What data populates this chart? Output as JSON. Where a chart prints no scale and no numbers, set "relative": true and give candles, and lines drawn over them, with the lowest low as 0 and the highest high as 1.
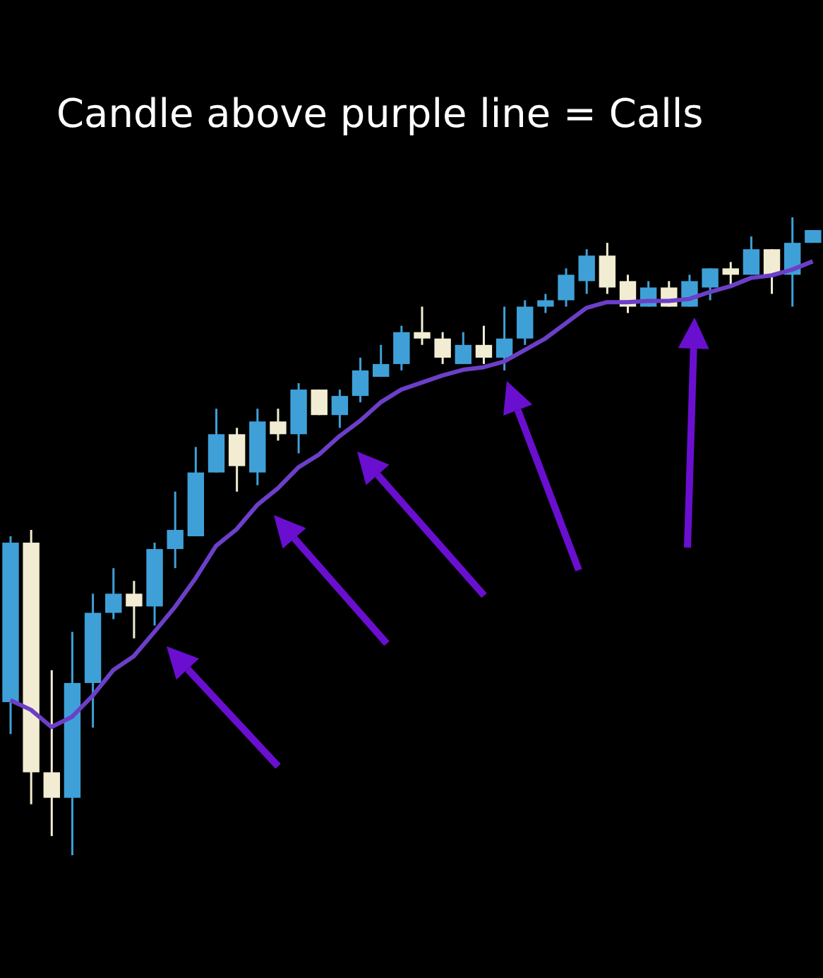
{
  "chart_data": {
    "type": "candlestick",
    "title": "Candle above purple line = Calls",
    "relative": true,
    "categories": [
      null,
      null,
      null,
      null,
      null,
      null,
      null,
      null,
      null,
      null,
      null,
      null,
      null,
      null,
      null,
      null,
      null,
      null,
      null,
      null,
      null,
      null,
      null,
      null,
      null,
      null,
      null,
      null,
      null,
      null,
      null,
      null,
      null,
      null,
      null,
      null,
      null,
      null,
      null,
      null
    ],
    "ohlc": [
      [
        0.24,
        0.5,
        0.19,
        0.49
      ],
      [
        0.49,
        0.51,
        0.08,
        0.13
      ],
      [
        0.13,
        0.29,
        0.03,
        0.09
      ],
      [
        0.09,
        0.35,
        0,
        0.27
      ],
      [
        0.27,
        0.41,
        0.2,
        0.38
      ],
      [
        0.38,
        0.45,
        0.37,
        0.41
      ],
      [
        0.41,
        0.43,
        0.34,
        0.39
      ],
      [
        0.39,
        0.49,
        0.36,
        0.48
      ],
      [
        0.48,
        0.57,
        0.45,
        0.51
      ],
      [
        0.5,
        0.64,
        0.5,
        0.6
      ],
      [
        0.6,
        0.7,
        0.6,
        0.66
      ],
      [
        0.66,
        0.67,
        0.57,
        0.61
      ],
      [
        0.6,
        0.7,
        0.58,
        0.68
      ],
      [
        0.68,
        0.7,
        0.65,
        0.66
      ],
      [
        0.66,
        0.74,
        0.63,
        0.73
      ],
      [
        0.73,
        0.73,
        0.69,
        0.69
      ],
      [
        0.69,
        0.73,
        0.67,
        0.72
      ],
      [
        0.72,
        0.78,
        0.71,
        0.76
      ],
      [
        0.75,
        0.8,
        0.75,
        0.77
      ],
      [
        0.77,
        0.83,
        0.76,
        0.82
      ],
      [
        0.82,
        0.86,
        0.8,
        0.81
      ],
      [
        0.81,
        0.82,
        0.77,
        0.78
      ],
      [
        0.77,
        0.82,
        0.77,
        0.8
      ],
      [
        0.8,
        0.83,
        0.77,
        0.78
      ],
      [
        0.78,
        0.86,
        0.76,
        0.81
      ],
      [
        0.81,
        0.87,
        0.8,
        0.86
      ],
      [
        0.86,
        0.88,
        0.85,
        0.87
      ],
      [
        0.87,
        0.92,
        0.86,
        0.91
      ],
      [
        0.9,
        0.95,
        0.88,
        0.94
      ],
      [
        0.94,
        0.96,
        0.88,
        0.89
      ],
      [
        0.9,
        0.91,
        0.85,
        0.86
      ],
      [
        0.86,
        0.9,
        0.86,
        0.89
      ],
      [
        0.89,
        0.9,
        0.86,
        0.86
      ],
      [
        0.86,
        0.91,
        0.86,
        0.9
      ],
      [
        0.89,
        0.92,
        0.87,
        0.92
      ],
      [
        0.92,
        0.93,
        0.89,
        0.91
      ],
      [
        0.91,
        0.97,
        0.91,
        0.95
      ],
      [
        0.95,
        0.95,
        0.88,
        0.91
      ],
      [
        0.91,
        1,
        0.86,
        0.96
      ],
      [
        0.96,
        0.98,
        0.96,
        0.98
      ]
    ],
    "colors": [
      "#3fa0d8",
      "#f2edd2",
      "#f2edd2",
      "#3fa0d8",
      "#3fa0d8",
      "#3fa0d8",
      "#f2edd2",
      "#3fa0d8",
      "#3fa0d8",
      "#3fa0d8",
      "#3fa0d8",
      "#f2edd2",
      "#3fa0d8",
      "#f2edd2",
      "#3fa0d8",
      "#f2edd2",
      "#3fa0d8",
      "#3fa0d8",
      "#3fa0d8",
      "#3fa0d8",
      "#f2edd2",
      "#f2edd2",
      "#3fa0d8",
      "#f2edd2",
      "#3fa0d8",
      "#3fa0d8",
      "#3fa0d8",
      "#3fa0d8",
      "#3fa0d8",
      "#f2edd2",
      "#f2edd2",
      "#3fa0d8",
      "#f2edd2",
      "#3fa0d8",
      "#3fa0d8",
      "#f2edd2",
      "#3fa0d8",
      "#f2edd2",
      "#3fa0d8",
      "#3fa0d8"
    ],
    "series": [
      {
        "type": "line",
        "color": "#6c3fc8",
        "values": [
          0.243,
          0.228,
          0.201,
          0.217,
          0.25,
          0.29,
          0.312,
          0.35,
          0.389,
          0.434,
          0.485,
          0.511,
          0.549,
          0.575,
          0.608,
          0.628,
          0.657,
          0.681,
          0.71,
          0.73,
          0.741,
          0.752,
          0.761,
          0.765,
          0.774,
          0.792,
          0.81,
          0.834,
          0.858,
          0.867,
          0.867,
          0.869,
          0.869,
          0.872,
          0.883,
          0.892,
          0.905,
          0.909,
          0.918,
          0.931
        ]
      }
    ]
  }
}
